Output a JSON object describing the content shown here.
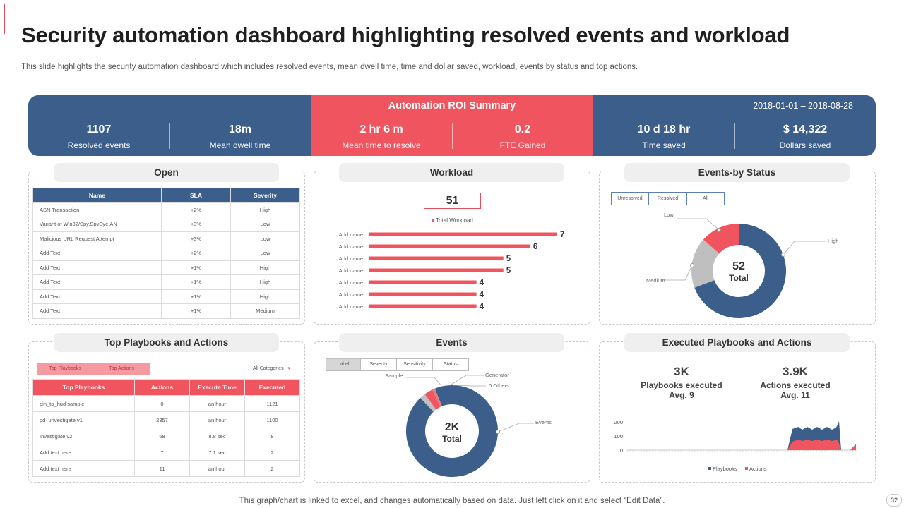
{
  "slide": {
    "title": "Security automation dashboard highlighting resolved events and workload",
    "subtitle": "This slide highlights the security automation dashboard which includes resolved events, mean dwell time, time and dollar saved, workload, events by status and top actions.",
    "footer": "This graph/chart is linked to excel,  and changes automatically based on data. Just left click on it and select “Edit Data”.",
    "page_number": "32"
  },
  "roi": {
    "title": "Automation ROI Summary",
    "date_range": "2018-01-01 – 2018-08-28",
    "kpis": [
      {
        "value": "1107",
        "label": "Resolved events"
      },
      {
        "value": "18m",
        "label": "Mean dwell time"
      },
      {
        "value": "2 hr 6 m",
        "label": "Mean time to resolve"
      },
      {
        "value": "0.2",
        "label": "FTE Gained"
      },
      {
        "value": "10 d 18 hr",
        "label": "Time saved"
      },
      {
        "value": "$ 14,322",
        "label": "Dollars saved"
      }
    ]
  },
  "open": {
    "title": "Open",
    "headers": [
      "Name",
      "SLA",
      "Severity"
    ],
    "rows": [
      [
        "ASN Transaction",
        "+2%",
        "High"
      ],
      [
        "Variant of Win32/Spy.SpyEye.AN",
        "+3%",
        "Low"
      ],
      [
        "Malicious URL Request Attempt",
        "+3%",
        "Low"
      ],
      [
        "Add Text",
        "+2%",
        "Low"
      ],
      [
        "Add Text",
        "+1%",
        "High"
      ],
      [
        "Add Text",
        "+1%",
        "High"
      ],
      [
        "Add Text",
        "+1%",
        "High"
      ],
      [
        "Add Text",
        "+1%",
        "Medium"
      ]
    ]
  },
  "workload": {
    "title": "Workload",
    "total": "51",
    "legend": "Total Workload",
    "chart_data": {
      "type": "bar",
      "categories": [
        "Add name",
        "Add name",
        "Add name",
        "Add name",
        "Add name",
        "Add name",
        "Add name"
      ],
      "values": [
        7,
        6,
        5,
        5,
        4,
        4,
        4
      ],
      "color": "#f0545f"
    }
  },
  "status": {
    "title": "Events-by Status",
    "tabs": [
      "Unresolved",
      "Resolved",
      "All"
    ],
    "center_value": "52",
    "center_label": "Total",
    "chart_data": {
      "type": "pie",
      "labels": [
        "High",
        "Medium",
        "Low"
      ],
      "values": [
        36,
        9,
        7
      ],
      "colors": [
        "#3b5e8a",
        "#bfbfbf",
        "#f0545f"
      ]
    }
  },
  "playbooks": {
    "title": "Top Playbooks and Actions",
    "tabs": [
      "Top Playbooks",
      "Top Actions"
    ],
    "filter": "All Categories",
    "headers": [
      "Top Playbooks",
      "Actions",
      "Execute Time",
      "Executed"
    ],
    "rows": [
      [
        "pin_to_hud sample",
        "0",
        "an hour",
        "1121"
      ],
      [
        "pd_unvestigate v1",
        "2357",
        "an hour",
        "1100"
      ],
      [
        "Investigate v2",
        "68",
        "8.8 sec",
        "8"
      ],
      [
        "Add text here",
        "7",
        "7.1 sec",
        "2"
      ],
      [
        "Add text here",
        "11",
        "an hour",
        "2"
      ]
    ]
  },
  "events": {
    "title": "Events",
    "tabs": [
      "Label",
      "Severity",
      "Sensitivity",
      "Status"
    ],
    "center_value": "2K",
    "center_label": "Total",
    "chart_data": {
      "type": "pie",
      "labels": [
        "Events",
        "Sample",
        "Generator",
        "0 Others"
      ],
      "values": [
        94,
        2,
        3,
        1
      ],
      "colors": [
        "#3b5e8a",
        "#bfbfbf",
        "#f0545f",
        "#e97a82"
      ]
    }
  },
  "executed": {
    "title": "Executed Playbooks and Actions",
    "stats": [
      {
        "value": "3K",
        "label": "Playbooks executed",
        "avg": "Avg. 9"
      },
      {
        "value": "3.9K",
        "label": "Actions executed",
        "avg": "Avg. 11"
      }
    ],
    "chart_data": {
      "type": "area",
      "y_ticks": [
        "200",
        "100",
        "0"
      ],
      "ylim": [
        0,
        200
      ],
      "series": [
        {
          "name": "Playbooks",
          "color": "#3b5e8a"
        },
        {
          "name": "Actions",
          "color": "#f0545f"
        }
      ]
    }
  }
}
